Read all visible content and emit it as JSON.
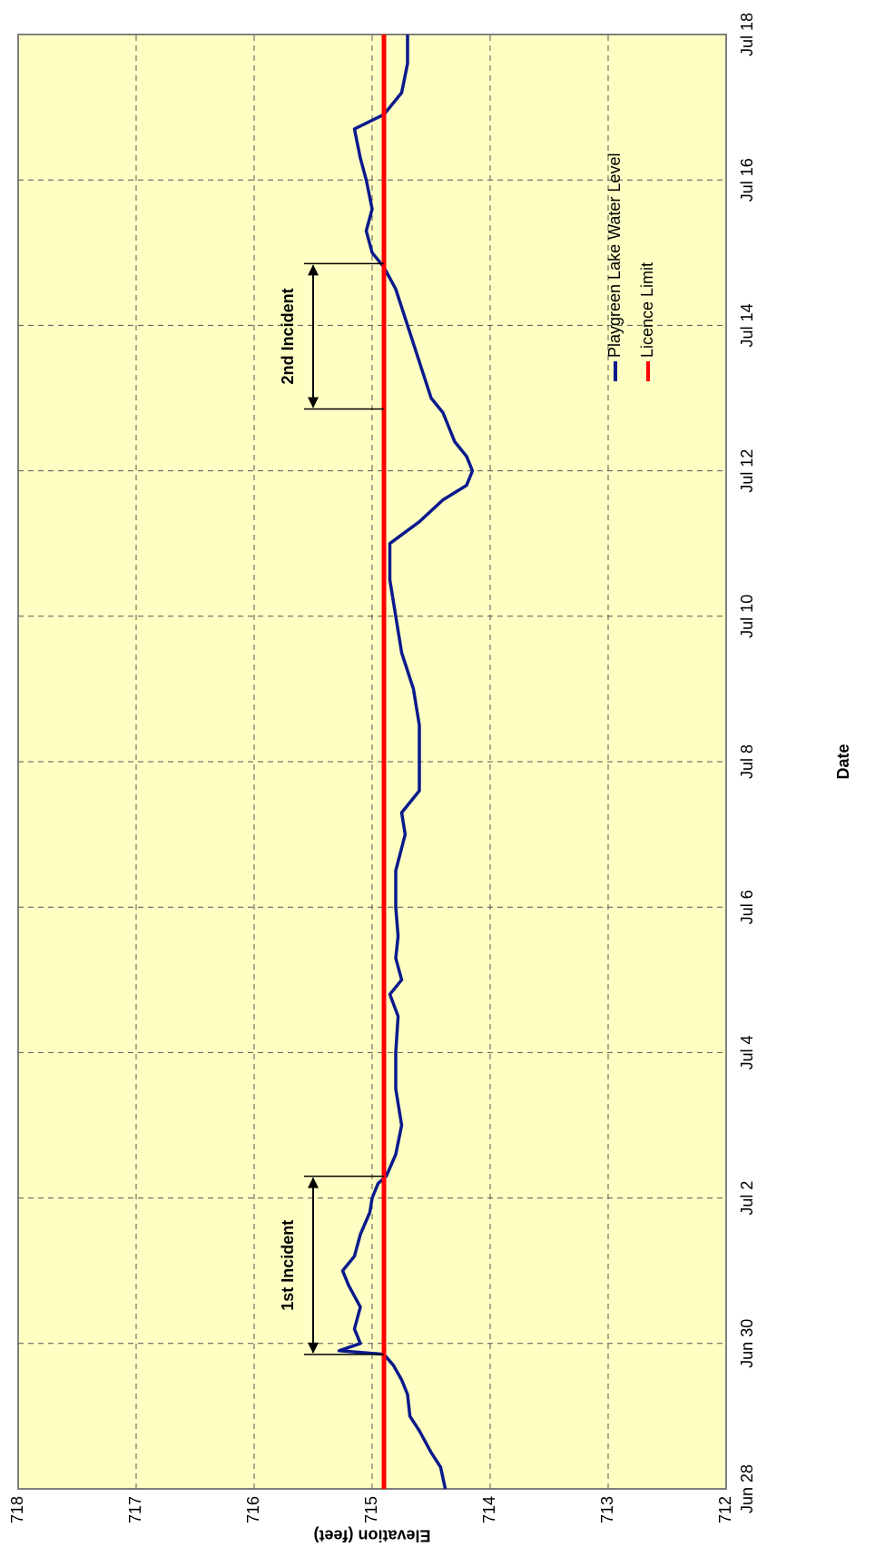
{
  "chart_data": {
    "type": "line",
    "x_label": "Date",
    "y_label": "Elevation (feet)",
    "xlim": [
      0,
      20
    ],
    "xticks": [
      {
        "value": 0,
        "label": "Jun 28"
      },
      {
        "value": 2,
        "label": "Jun 30"
      },
      {
        "value": 4,
        "label": "Jul 2"
      },
      {
        "value": 6,
        "label": "Jul 4"
      },
      {
        "value": 8,
        "label": "Jul 6"
      },
      {
        "value": 10,
        "label": "Jul 8"
      },
      {
        "value": 12,
        "label": "Jul 10"
      },
      {
        "value": 14,
        "label": "Jul 12"
      },
      {
        "value": 16,
        "label": "Jul 14"
      },
      {
        "value": 18,
        "label": "Jul 16"
      },
      {
        "value": 20,
        "label": "Jul 18"
      }
    ],
    "ylim": [
      712,
      718
    ],
    "yticks": [
      712,
      713,
      714,
      715,
      716,
      717,
      718
    ],
    "grid": true,
    "series": [
      {
        "name": "Playgreen Lake Water Level",
        "color": "#0a1a8c",
        "x": [
          0,
          0.3,
          0.5,
          0.8,
          1.0,
          1.3,
          1.5,
          1.7,
          1.85,
          1.9,
          2.0,
          2.2,
          2.5,
          2.8,
          3.0,
          3.2,
          3.5,
          3.8,
          4.0,
          4.2,
          4.3,
          4.6,
          5.0,
          5.5,
          6.0,
          6.5,
          6.8,
          7.0,
          7.3,
          7.6,
          8.0,
          8.5,
          9.0,
          9.3,
          9.6,
          10.0,
          10.5,
          11.0,
          11.5,
          12.0,
          12.5,
          13.0,
          13.3,
          13.6,
          13.8,
          14.0,
          14.2,
          14.4,
          14.8,
          15.0,
          15.5,
          16.0,
          16.5,
          16.8,
          17.0,
          17.3,
          17.6,
          18.0,
          18.3,
          18.7,
          18.9,
          19.2,
          19.6,
          20.0
        ],
        "values": [
          714.38,
          714.42,
          714.5,
          714.6,
          714.68,
          714.7,
          714.75,
          714.82,
          714.9,
          715.28,
          715.1,
          715.15,
          715.1,
          715.2,
          715.25,
          715.15,
          715.1,
          715.02,
          715.0,
          714.95,
          714.88,
          714.8,
          714.75,
          714.8,
          714.8,
          714.78,
          714.85,
          714.75,
          714.8,
          714.78,
          714.8,
          714.8,
          714.72,
          714.75,
          714.6,
          714.6,
          714.6,
          714.65,
          714.75,
          714.8,
          714.85,
          714.85,
          714.6,
          714.4,
          714.2,
          714.15,
          714.2,
          714.3,
          714.4,
          714.5,
          714.6,
          714.7,
          714.8,
          714.9,
          715.0,
          715.05,
          715.0,
          715.05,
          715.1,
          715.15,
          714.9,
          714.75,
          714.7,
          714.7
        ]
      },
      {
        "name": "Licence Limit",
        "color": "#ff0000",
        "x": [
          0,
          20
        ],
        "values": [
          714.9,
          714.9
        ]
      }
    ],
    "annotations": [
      {
        "text": "1st Incident",
        "x": [
          1.85,
          4.3
        ]
      },
      {
        "text": "2nd Incident",
        "x": [
          14.85,
          16.85
        ]
      }
    ]
  }
}
